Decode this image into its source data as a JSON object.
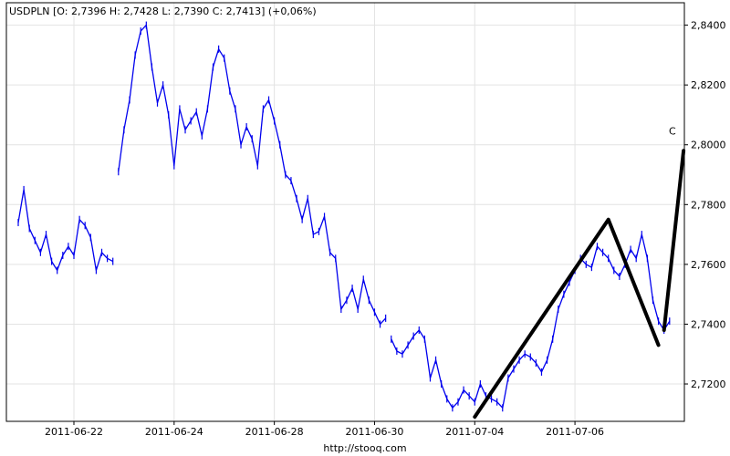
{
  "header": {
    "title": "USDPLN [O: 2,7396  H: 2,7428  L: 2,7390  C: 2,7413] (+0,06%)"
  },
  "footer": {
    "source": "http://stooq.com"
  },
  "colors": {
    "price": "#0000ee",
    "drawing": "#000000",
    "grid": "#e3e3e3",
    "frame": "#000000"
  },
  "chart_data": {
    "type": "line",
    "title": "USDPLN [O: 2,7396  H: 2,7428  L: 2,7390  C: 2,7413] (+0,06%)",
    "xlabel": "",
    "ylabel": "",
    "ylim": [
      2.7075,
      2.8475
    ],
    "y_ticks": [
      2.72,
      2.74,
      2.76,
      2.78,
      2.8,
      2.82,
      2.84
    ],
    "y_tick_labels": [
      "2,7200",
      "2,7400",
      "2,7600",
      "2,7800",
      "2,8000",
      "2,8200",
      "2,8400"
    ],
    "x_tick_labels": [
      "2011-06-22",
      "2011-06-24",
      "2011-06-28",
      "2011-06-30",
      "2011-07-04",
      "2011-07-06"
    ],
    "x_tick_index": [
      10,
      28,
      46,
      64,
      82,
      100
    ],
    "x_count": 120,
    "grid": true,
    "series": [
      {
        "values": [
          2.774,
          2.785,
          2.772,
          2.768,
          2.764,
          2.77,
          2.761,
          2.758,
          2.763,
          2.766,
          2.763,
          2.775,
          2.773,
          2.769,
          2.758,
          2.764,
          2.762,
          2.761,
          2.791,
          2.805,
          2.815,
          2.83,
          2.838,
          2.84,
          2.826,
          2.814,
          2.82,
          2.81,
          2.793,
          2.812,
          2.805,
          2.808,
          2.811,
          2.803,
          2.812,
          2.826,
          2.832,
          2.829,
          2.818,
          2.812,
          2.8,
          2.806,
          2.802,
          2.793,
          2.812,
          2.815,
          2.808,
          2.8,
          2.79,
          2.788,
          2.782,
          2.775,
          2.782,
          2.77,
          2.771,
          2.776,
          2.764,
          2.762,
          2.745,
          2.748,
          2.752,
          2.745,
          2.755,
          2.748,
          2.744,
          2.74,
          2.742,
          2.735,
          2.731,
          2.73,
          2.733,
          2.736,
          2.738,
          2.735,
          2.722,
          2.728,
          2.72,
          2.715,
          2.712,
          2.714,
          2.718,
          2.716,
          2.714,
          2.72,
          2.716,
          2.715,
          2.714,
          2.712,
          2.722,
          2.725,
          2.728,
          2.73,
          2.729,
          2.727,
          2.724,
          2.728,
          2.735,
          2.745,
          2.75,
          2.754,
          2.758,
          2.762,
          2.76,
          2.759,
          2.766,
          2.764,
          2.762,
          2.758,
          2.756,
          2.76,
          2.765,
          2.762,
          2.77,
          2.762,
          2.748,
          2.741,
          2.738,
          2.741
        ],
        "gaps_after_index": [
          17,
          66
        ]
      }
    ],
    "annotations": [
      {
        "type": "polyline",
        "points": [
          [
            82,
            2.709
          ],
          [
            106,
            2.775
          ],
          [
            115,
            2.733
          ]
        ]
      },
      {
        "type": "polyline",
        "points": [
          [
            116,
            2.738
          ],
          [
            119.5,
            2.798
          ]
        ]
      },
      {
        "type": "label",
        "text": "C",
        "x": 117.5,
        "y": 2.8035
      }
    ]
  }
}
